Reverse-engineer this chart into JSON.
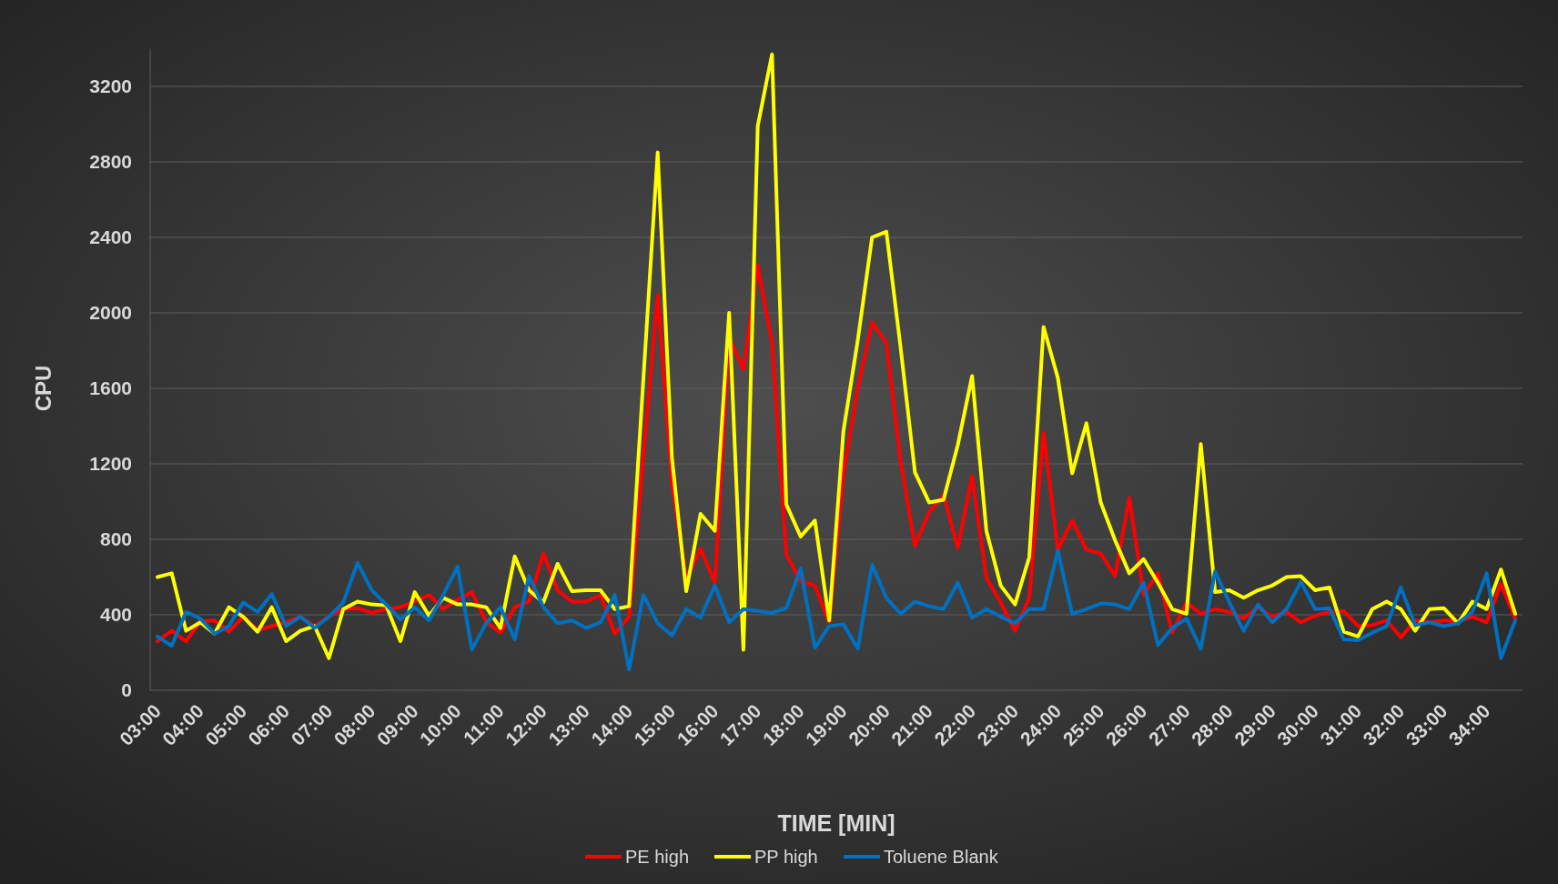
{
  "chart_data": {
    "type": "line",
    "xlabel": "TIME [MIN]",
    "ylabel": "CPU",
    "categories": [
      "03:00",
      null,
      null,
      "04:00",
      null,
      null,
      "05:00",
      null,
      null,
      "06:00",
      null,
      null,
      "07:00",
      null,
      null,
      "08:00",
      null,
      null,
      "09:00",
      null,
      null,
      "10:00",
      null,
      null,
      "11:00",
      null,
      null,
      "12:00",
      null,
      null,
      "13:00",
      null,
      null,
      "14:00",
      null,
      null,
      "15:00",
      null,
      null,
      "16:00",
      null,
      null,
      "17:00",
      null,
      null,
      "18:00",
      null,
      null,
      "19:00",
      null,
      null,
      "20:00",
      null,
      null,
      "21:00",
      null,
      null,
      "22:00",
      null,
      null,
      "23:00",
      null,
      null,
      "24:00",
      null,
      null,
      "25:00",
      null,
      null,
      "26:00",
      null,
      null,
      "27:00",
      null,
      null,
      "28:00",
      null,
      null,
      "29:00",
      null,
      null,
      "30:00",
      null,
      null,
      "31:00",
      null,
      null,
      "32:00",
      null,
      null,
      "33:00",
      null,
      null,
      "34:00",
      null,
      null
    ],
    "series": [
      {
        "name": "PE high",
        "color": "#ff0000",
        "values": [
          260,
          315,
          260,
          365,
          370,
          310,
          390,
          320,
          340,
          360,
          390,
          340,
          390,
          430,
          435,
          410,
          430,
          440,
          470,
          505,
          430,
          480,
          520,
          365,
          305,
          440,
          470,
          725,
          530,
          470,
          470,
          505,
          300,
          390,
          1240,
          2095,
          1100,
          590,
          750,
          570,
          1870,
          1700,
          2250,
          1840,
          720,
          580,
          555,
          360,
          1150,
          1600,
          1950,
          1840,
          1210,
          765,
          945,
          1035,
          755,
          1135,
          595,
          465,
          315,
          490,
          1365,
          745,
          900,
          745,
          725,
          605,
          1020,
          505,
          620,
          305,
          465,
          405,
          430,
          415,
          380,
          440,
          390,
          415,
          360,
          395,
          415,
          420,
          340,
          345,
          370,
          280,
          370,
          360,
          370,
          365,
          390,
          360,
          565,
          380
        ]
      },
      {
        "name": "PP high",
        "color": "#ffff00",
        "values": [
          600,
          620,
          315,
          360,
          300,
          440,
          390,
          310,
          440,
          260,
          315,
          340,
          170,
          430,
          470,
          455,
          450,
          260,
          520,
          395,
          490,
          455,
          455,
          440,
          330,
          710,
          530,
          465,
          670,
          525,
          530,
          530,
          430,
          445,
          1650,
          2850,
          1230,
          525,
          935,
          845,
          2000,
          215,
          2990,
          3370,
          985,
          815,
          900,
          370,
          1375,
          1855,
          2400,
          2430,
          1815,
          1155,
          995,
          1010,
          1300,
          1665,
          845,
          555,
          455,
          705,
          1925,
          1655,
          1150,
          1415,
          995,
          795,
          620,
          695,
          570,
          430,
          405,
          1305,
          520,
          530,
          490,
          530,
          555,
          600,
          605,
          530,
          545,
          310,
          285,
          430,
          470,
          430,
          315,
          430,
          435,
          355,
          470,
          430,
          640,
          405
        ]
      },
      {
        "name": "Toluene Blank",
        "color": "#0070c0",
        "values": [
          285,
          235,
          415,
          380,
          300,
          340,
          465,
          415,
          510,
          340,
          390,
          330,
          390,
          465,
          675,
          530,
          455,
          375,
          440,
          370,
          505,
          655,
          215,
          355,
          440,
          270,
          605,
          440,
          355,
          370,
          330,
          360,
          505,
          110,
          505,
          355,
          290,
          430,
          385,
          555,
          360,
          430,
          420,
          410,
          435,
          645,
          225,
          340,
          350,
          220,
          665,
          490,
          405,
          470,
          445,
          430,
          570,
          385,
          430,
          390,
          355,
          430,
          430,
          740,
          405,
          430,
          460,
          455,
          430,
          570,
          240,
          330,
          380,
          220,
          630,
          465,
          315,
          455,
          360,
          430,
          575,
          430,
          435,
          270,
          265,
          305,
          340,
          545,
          345,
          360,
          340,
          355,
          415,
          620,
          170,
          370
        ]
      }
    ],
    "ylim": [
      0,
      3400
    ],
    "yticks": [
      0,
      400,
      800,
      1200,
      1600,
      2000,
      2400,
      2800,
      3200
    ],
    "grid": "y",
    "legend": "bottom",
    "line_style": "solid",
    "marker": "none"
  }
}
